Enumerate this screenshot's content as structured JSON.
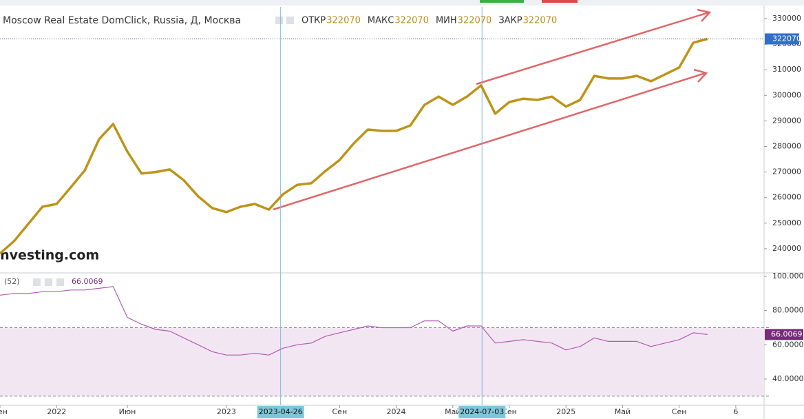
{
  "chart_data": [
    {
      "type": "line",
      "title": "Moscow Real Estate DomClick, Russia, Д, Москва",
      "quote": [
        {
          "label": "ОТКР",
          "value": 322070
        },
        {
          "label": "МАКС",
          "value": 322070
        },
        {
          "label": "МИН",
          "value": 322070
        },
        {
          "label": "ЗАКР",
          "value": 322070
        }
      ],
      "watermark": "Investing.com",
      "x": [
        "2021-09",
        "2021-10",
        "2021-11",
        "2021-12",
        "2022-01",
        "2022-02",
        "2022-03",
        "2022-04",
        "2022-05",
        "2022-06",
        "2022-07",
        "2022-08",
        "2022-09",
        "2022-10",
        "2022-11",
        "2022-12",
        "2023-01",
        "2023-02",
        "2023-03",
        "2023-04",
        "2023-05",
        "2023-06",
        "2023-07",
        "2023-08",
        "2023-09",
        "2023-10",
        "2023-11",
        "2023-12",
        "2024-01",
        "2024-02",
        "2024-03",
        "2024-04",
        "2024-05",
        "2024-06",
        "2024-07",
        "2024-08",
        "2024-09",
        "2024-10",
        "2024-11",
        "2024-12",
        "2025-01",
        "2025-02",
        "2025-03",
        "2025-04",
        "2025-05",
        "2025-06",
        "2025-07",
        "2025-08",
        "2025-09",
        "2025-10",
        "2025-11"
      ],
      "values": [
        238100,
        243000,
        249700,
        256400,
        257500,
        264000,
        270700,
        282800,
        288800,
        278000,
        269400,
        270000,
        271000,
        266700,
        260500,
        255900,
        254300,
        256400,
        257500,
        255300,
        261300,
        265000,
        265600,
        270400,
        274700,
        281200,
        286600,
        286100,
        286100,
        288200,
        296300,
        299500,
        296300,
        299500,
        303900,
        292800,
        297400,
        298700,
        298200,
        299500,
        295600,
        298200,
        307600,
        306600,
        306600,
        307600,
        305500,
        308200,
        310900,
        320600,
        322070
      ],
      "color": "#bd9419",
      "ylim": [
        230800,
        334600
      ],
      "yticks": [
        240000,
        250000,
        260000,
        270000,
        280000,
        290000,
        300000,
        310000,
        320000,
        330000
      ]
    },
    {
      "type": "line",
      "title": "(52)",
      "values": [
        89,
        90,
        90,
        91,
        91,
        92,
        92,
        93,
        94,
        76,
        72,
        69,
        68,
        64,
        60,
        56,
        54,
        54,
        55,
        54,
        58,
        60,
        61,
        65,
        67,
        69,
        71,
        70,
        70,
        70,
        74,
        74,
        68,
        71,
        71,
        61,
        62,
        63,
        62,
        61,
        57,
        59,
        64,
        62,
        62,
        62,
        59,
        61,
        63,
        67,
        66.0069
      ],
      "color": "#b05cb0",
      "levels": [
        30,
        70
      ],
      "ylim": [
        24.7,
        101.6
      ],
      "yticks": [
        {
          "value": 40,
          "label": "40.0000"
        },
        {
          "value": 60,
          "label": "60.0000"
        },
        {
          "value": 80,
          "label": "80.0000"
        },
        {
          "value": 100,
          "label": "100.0000"
        }
      ],
      "xlim": [
        "2021-09",
        "2026-03"
      ],
      "xticks": [
        {
          "value": "2021-09",
          "label": "Сен"
        },
        {
          "value": "2022-01",
          "label": "2022"
        },
        {
          "value": "2022-06",
          "label": "Июн"
        },
        {
          "value": "2023-01",
          "label": "2023"
        },
        {
          "value": "2023-09",
          "label": "Сен"
        },
        {
          "value": "2024-01",
          "label": "2024"
        },
        {
          "value": "2024-05",
          "label": "Май"
        },
        {
          "value": "2024-09",
          "label": "Сен"
        },
        {
          "value": "2025-01",
          "label": "2025"
        },
        {
          "value": "2025-05",
          "label": "Май"
        },
        {
          "value": "2025-09",
          "label": "Сен"
        },
        {
          "value": "2026-01",
          "label": "6"
        }
      ],
      "crosshairs": [
        "2023-04-26",
        "2024-07-03"
      ]
    }
  ]
}
